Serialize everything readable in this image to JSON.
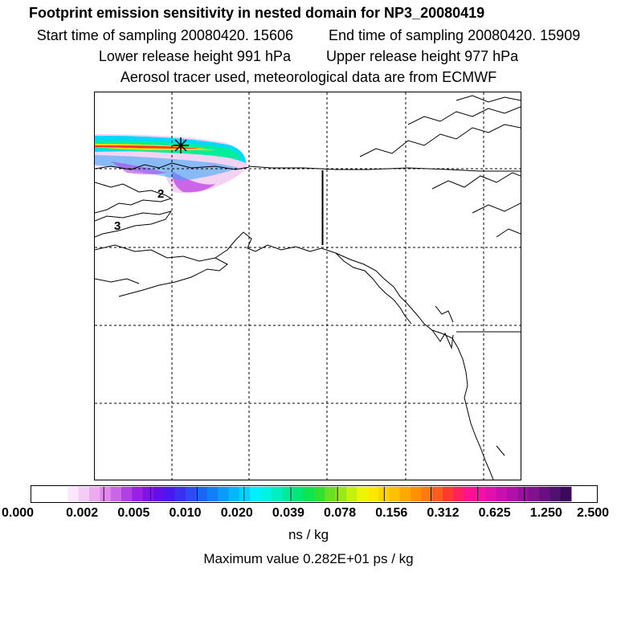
{
  "titles": {
    "line1": "Footprint emission sensitivity in nested domain for NP3_20080419",
    "start": "Start time of sampling 20080420. 15606",
    "end": "End time of sampling 20080420. 15909",
    "lower": "Lower release height  991 hPa",
    "upper": "Upper release height  977 hPa",
    "line4": "Aerosol tracer used, meteorological data are from ECMWF"
  },
  "map": {
    "contour_labels": [
      "2",
      "3"
    ],
    "release_marker_icon": "asterisk-icon"
  },
  "colorbar": {
    "tick_labels": [
      "0.000",
      "0.002",
      "0.005",
      "0.010",
      "0.020",
      "0.039",
      "0.078",
      "0.156",
      "0.312",
      "0.625",
      "1.250",
      "2.500"
    ],
    "colors": [
      "#ffffff",
      "#fbe6fb",
      "#f5ccf5",
      "#eeaaf0",
      "#e088ec",
      "#cc66e8",
      "#b040e6",
      "#9a20e6",
      "#7f14e6",
      "#6210ea",
      "#4a18ee",
      "#3a30f0",
      "#2a4cf2",
      "#1a66f4",
      "#1080f6",
      "#0a9af8",
      "#06b6fa",
      "#04d0fc",
      "#00eeff",
      "#00f2e4",
      "#00eec0",
      "#00ea9c",
      "#00e678",
      "#10e250",
      "#30e030",
      "#6ae022",
      "#9ae818",
      "#c6f010",
      "#eef408",
      "#ffe800",
      "#ffd400",
      "#ffc000",
      "#ffa800",
      "#ff9000",
      "#ff7810",
      "#ff5c20",
      "#ff3a30",
      "#ff2060",
      "#ff1090",
      "#f610a8",
      "#e010b0",
      "#c810b0",
      "#b010a8",
      "#9810a0",
      "#801090",
      "#681080",
      "#501070",
      "#3c0a5a"
    ],
    "units": "ns / kg"
  },
  "max_value": "Maximum value  0.282E+01 ps / kg"
}
